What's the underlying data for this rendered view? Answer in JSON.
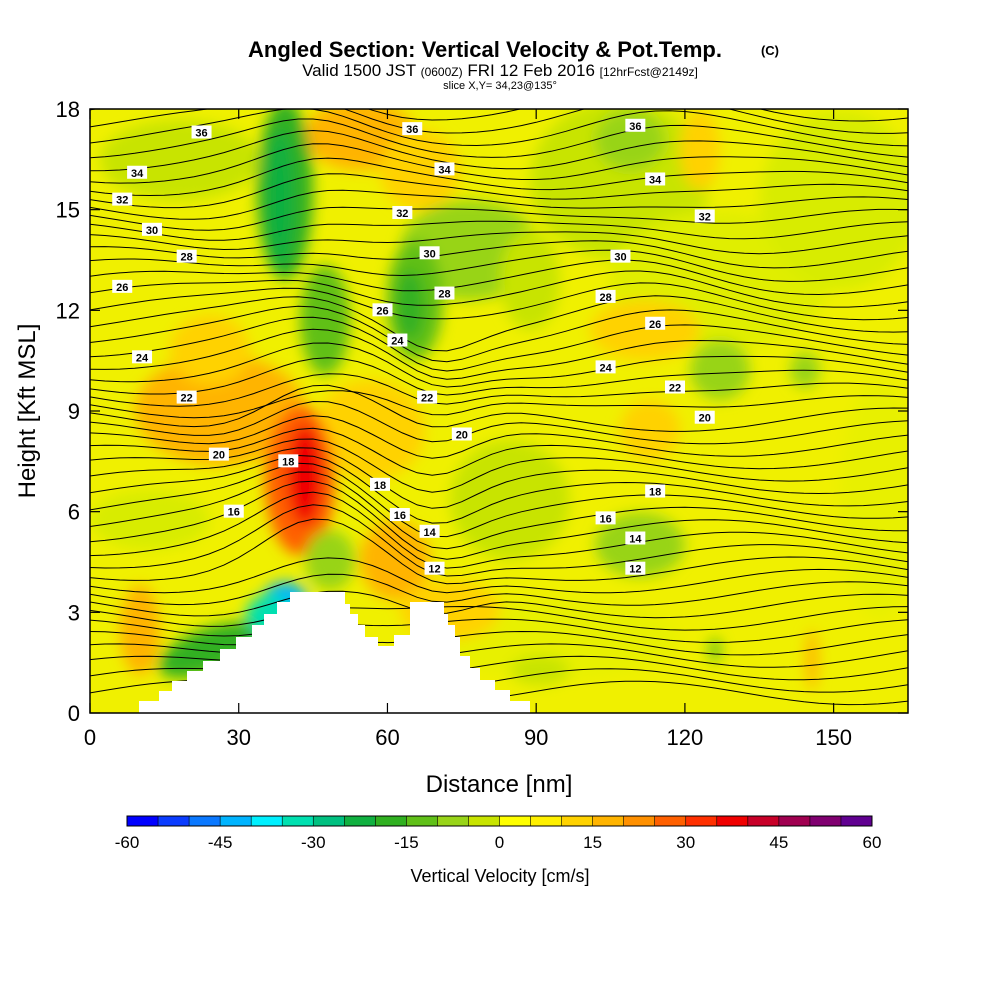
{
  "chart_data": {
    "type": "heatmap",
    "title": "Angled Section: Vertical Velocity & Pot.Temp.",
    "title_unit": "(C)",
    "subtitle_parts": {
      "valid": "Valid 1500 JST",
      "utc": "(0600Z)",
      "date": "FRI 12 Feb 2016",
      "fcst": "[12hrFcst@2149z]"
    },
    "slice": "slice X,Y= 34,23@135°",
    "xlabel": "Distance [nm]",
    "ylabel": "Height [Kft MSL]",
    "xlim": [
      0,
      165
    ],
    "ylim": [
      0,
      18
    ],
    "x_ticks": [
      "0",
      "30",
      "60",
      "90",
      "120",
      "150"
    ],
    "x_tick_values": [
      0,
      30,
      60,
      90,
      120,
      150
    ],
    "y_ticks": [
      "0",
      "3",
      "6",
      "9",
      "12",
      "15",
      "18"
    ],
    "y_tick_values": [
      0,
      3,
      6,
      9,
      12,
      15,
      18
    ],
    "colorbar": {
      "label": "Vertical Velocity [cm/s]",
      "ticks": [
        "-60",
        "-45",
        "-30",
        "-15",
        "0",
        "15",
        "30",
        "45",
        "60"
      ],
      "tick_values": [
        -60,
        -45,
        -30,
        -15,
        0,
        15,
        30,
        45,
        60
      ],
      "colors": [
        "#0000ff",
        "#0a3cff",
        "#0a78ff",
        "#00b4ff",
        "#00f0ff",
        "#00e0b0",
        "#00c080",
        "#10b040",
        "#30b020",
        "#60c018",
        "#98d418",
        "#c8e400",
        "#ffff00",
        "#fff000",
        "#ffd200",
        "#ffb400",
        "#ff9000",
        "#ff6000",
        "#ff3000",
        "#f00000",
        "#c80028",
        "#a00050",
        "#800070",
        "#600090"
      ]
    },
    "contour_labels": [
      {
        "text": "36",
        "x": 22.5,
        "y": 17.3
      },
      {
        "text": "36",
        "x": 65,
        "y": 17.4
      },
      {
        "text": "36",
        "x": 110,
        "y": 17.5
      },
      {
        "text": "34",
        "x": 9.5,
        "y": 16.1
      },
      {
        "text": "34",
        "x": 71.5,
        "y": 16.2
      },
      {
        "text": "34",
        "x": 114,
        "y": 15.9
      },
      {
        "text": "32",
        "x": 6.5,
        "y": 15.3
      },
      {
        "text": "32",
        "x": 63,
        "y": 14.9
      },
      {
        "text": "32",
        "x": 124,
        "y": 14.8
      },
      {
        "text": "30",
        "x": 12.5,
        "y": 14.4
      },
      {
        "text": "30",
        "x": 68.5,
        "y": 13.7
      },
      {
        "text": "30",
        "x": 107,
        "y": 13.6
      },
      {
        "text": "28",
        "x": 19.5,
        "y": 13.6
      },
      {
        "text": "28",
        "x": 71.5,
        "y": 12.5
      },
      {
        "text": "28",
        "x": 104,
        "y": 12.4
      },
      {
        "text": "26",
        "x": 6.5,
        "y": 12.7
      },
      {
        "text": "26",
        "x": 59,
        "y": 12.0
      },
      {
        "text": "26",
        "x": 114,
        "y": 11.6
      },
      {
        "text": "24",
        "x": 10.5,
        "y": 10.6
      },
      {
        "text": "24",
        "x": 62,
        "y": 11.1
      },
      {
        "text": "24",
        "x": 104,
        "y": 10.3
      },
      {
        "text": "22",
        "x": 19.5,
        "y": 9.4
      },
      {
        "text": "22",
        "x": 68,
        "y": 9.4
      },
      {
        "text": "22",
        "x": 118,
        "y": 9.7
      },
      {
        "text": "20",
        "x": 26,
        "y": 7.7
      },
      {
        "text": "20",
        "x": 75,
        "y": 8.3
      },
      {
        "text": "20",
        "x": 124,
        "y": 8.8
      },
      {
        "text": "18",
        "x": 40,
        "y": 7.5
      },
      {
        "text": "18",
        "x": 58.5,
        "y": 6.8
      },
      {
        "text": "18",
        "x": 114,
        "y": 6.6
      },
      {
        "text": "16",
        "x": 29,
        "y": 6.0
      },
      {
        "text": "16",
        "x": 62.5,
        "y": 5.9
      },
      {
        "text": "16",
        "x": 104,
        "y": 5.8
      },
      {
        "text": "14",
        "x": 68.5,
        "y": 5.4
      },
      {
        "text": "14",
        "x": 110,
        "y": 5.2
      },
      {
        "text": "12",
        "x": 69.5,
        "y": 4.3
      },
      {
        "text": "12",
        "x": 110,
        "y": 4.3
      }
    ]
  }
}
